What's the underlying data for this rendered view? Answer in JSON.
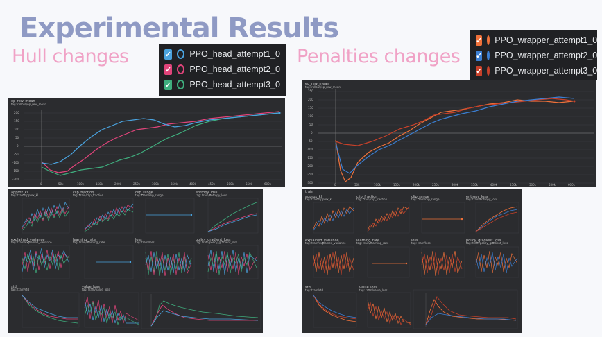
{
  "header": {
    "title": "Experimental Results",
    "left_subtitle": "Hull changes",
    "right_subtitle": "Penalties changes"
  },
  "legend_left": {
    "items": [
      {
        "label": "PPO_head_attempt1_0",
        "color": "#4aa3df"
      },
      {
        "label": "PPO_head_attempt2_0",
        "color": "#e0447a"
      },
      {
        "label": "PPO_head_attempt3_0",
        "color": "#3fae7e"
      }
    ]
  },
  "legend_right": {
    "items": [
      {
        "label": "PPO_wrapper_attempt1_0",
        "color": "#f0713a"
      },
      {
        "label": "PPO_wrapper_attempt2_0",
        "color": "#3b7fd4"
      },
      {
        "label": "PPO_wrapper_attempt3_0",
        "color": "#c8412a"
      }
    ]
  },
  "left_main": {
    "name": "ep_rew_mean",
    "tag": "tag: rollout/ep_rew_mean",
    "yticks": [
      "200",
      "150",
      "100",
      "50",
      "0",
      "-50",
      "-100",
      "-150",
      "-200"
    ],
    "xticks": [
      "0",
      "50k",
      "100k",
      "150k",
      "200k",
      "250k",
      "300k",
      "350k",
      "400k",
      "450k",
      "500k",
      "550k",
      "600k"
    ]
  },
  "right_main": {
    "name": "ep_rew_mean",
    "tag": "tag: rollout/ep_rew_mean",
    "yticks": [
      "250",
      "200",
      "150",
      "100",
      "50",
      "0",
      "-50",
      "-100",
      "-150",
      "-200",
      "-250",
      "-300"
    ],
    "xticks": [
      "0",
      "50k",
      "100k",
      "150k",
      "200k",
      "250k",
      "300k",
      "350k",
      "400k",
      "450k",
      "500k",
      "550k",
      "600k"
    ]
  },
  "left_grid": {
    "cells": [
      {
        "name": "approx_kl",
        "tag": "tag: train/approx_kl"
      },
      {
        "name": "clip_fraction",
        "tag": "tag: train/clip_fraction"
      },
      {
        "name": "clip_range",
        "tag": "tag: train/clip_range"
      },
      {
        "name": "entropy_loss",
        "tag": "tag: train/entropy_loss"
      },
      {
        "name": "explained_variance",
        "tag": "tag: train/explained_variance"
      },
      {
        "name": "learning_rate",
        "tag": "tag: train/learning_rate"
      },
      {
        "name": "loss",
        "tag": "tag: train/loss"
      },
      {
        "name": "policy_gradient_loss",
        "tag": "tag: train/policy_gradient_loss"
      },
      {
        "name": "std",
        "tag": "tag: train/std"
      },
      {
        "name": "value_loss",
        "tag": "tag: train/value_loss"
      }
    ]
  },
  "right_grid": {
    "header": "train",
    "cells": [
      {
        "name": "approx_kl",
        "tag": "tag: train/approx_kl"
      },
      {
        "name": "clip_fraction",
        "tag": "tag: train/clip_fraction"
      },
      {
        "name": "clip_range",
        "tag": "tag: train/clip_range"
      },
      {
        "name": "entropy_loss",
        "tag": "tag: train/entropy_loss"
      },
      {
        "name": "explained_variance",
        "tag": "tag: train/explained_variance"
      },
      {
        "name": "learning_rate",
        "tag": "tag: train/learning_rate"
      },
      {
        "name": "loss",
        "tag": "tag: train/loss"
      },
      {
        "name": "policy_gradient_loss",
        "tag": "tag: train/policy_gradient_loss"
      },
      {
        "name": "std",
        "tag": "tag: train/std"
      },
      {
        "name": "value_loss",
        "tag": "tag: train/value_loss"
      }
    ]
  }
}
